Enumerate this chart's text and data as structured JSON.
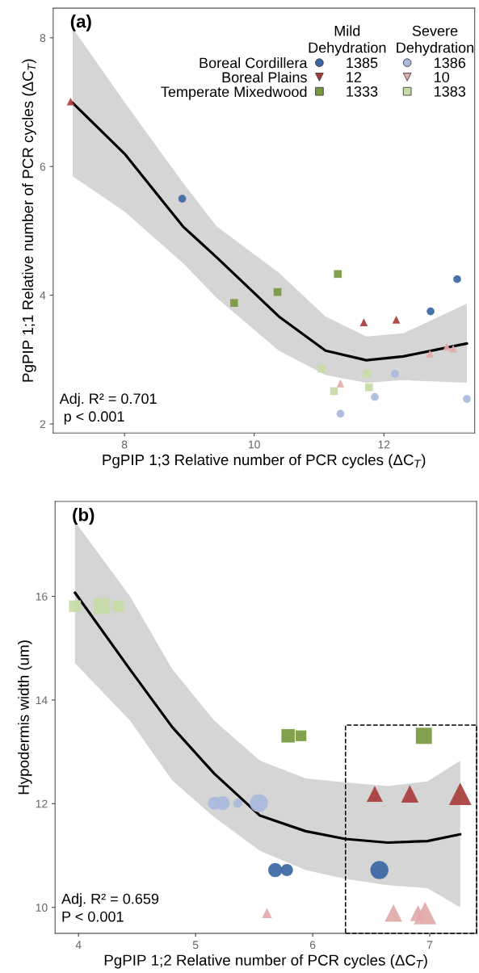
{
  "chart_data": [
    {
      "type": "scatter",
      "xlabel": "PgPIP 1;3 Relative number of PCR cycles (ΔC$_{T}$)",
      "ylabel": "PgPIP 1;1 Relative number of PCR cycles (ΔC$_{T}$)",
      "xlim": [
        6.9,
        13.4
      ],
      "ylim": [
        1.86,
        8.46
      ],
      "xticks": [
        8,
        10,
        12
      ],
      "yticks": [
        2,
        4,
        6,
        8
      ],
      "legend": "top right",
      "grid": false,
      "annotations": [
        "(a)",
        "Mild\nDehydration",
        "Severe\nDehydration",
        "Boreal Cordillera",
        "Boreal Plains",
        "Temperate Mixedwood",
        "Adj. R² = 0.701\n p < 0.001"
      ],
      "series": [
        {
          "name": "1385",
          "type": "scatter",
          "marker": "circle",
          "color": "#3a67a3",
          "x": [
            13.13,
            12.72,
            8.89
          ],
          "values": [
            4.25,
            3.75,
            5.5
          ]
        },
        {
          "name": "12",
          "type": "scatter",
          "marker": "triangle",
          "color": "#a83c3a",
          "x": [
            11.69,
            12.19,
            7.17
          ],
          "values": [
            3.58,
            3.62,
            7.01
          ]
        },
        {
          "name": "1333",
          "type": "scatter",
          "marker": "square",
          "color": "#76993e",
          "x": [
            11.29,
            10.36,
            9.69
          ],
          "values": [
            4.33,
            4.05,
            3.88
          ]
        },
        {
          "name": "1386",
          "type": "scatter",
          "marker": "circle",
          "color": "#a9b9dc",
          "x": [
            12.17,
            11.86,
            11.33,
            13.28
          ],
          "values": [
            2.78,
            2.42,
            2.16,
            2.39
          ]
        },
        {
          "name": "10",
          "type": "scatter",
          "marker": "triangle",
          "color": "#e2a9a9",
          "x": [
            12.71,
            13.07,
            12.97,
            11.33
          ],
          "values": [
            3.09,
            3.17,
            3.2,
            2.63
          ]
        },
        {
          "name": "1383",
          "type": "scatter",
          "marker": "square",
          "color": "#c6dca6",
          "x": [
            11.04,
            11.74,
            11.23,
            11.77
          ],
          "values": [
            2.86,
            2.78,
            2.51,
            2.57
          ]
        },
        {
          "type": "line",
          "color": "#000000",
          "x": [
            7.2,
            8.0,
            8.9,
            9.42,
            10.38,
            11.1,
            11.73,
            12.3,
            13.28
          ],
          "values": [
            6.99,
            6.2,
            5.07,
            4.59,
            3.67,
            3.14,
            2.99,
            3.05,
            3.25
          ],
          "upper": [
            8.15,
            7.0,
            5.75,
            5.07,
            4.35,
            3.67,
            3.36,
            3.41,
            3.87
          ],
          "lower": [
            5.85,
            5.3,
            4.5,
            3.96,
            3.14,
            2.76,
            2.64,
            2.68,
            2.64
          ]
        }
      ]
    },
    {
      "type": "scatter",
      "xlabel": "PgPIP 1;2 Relative number of PCR cycles (ΔC$_{T}$)",
      "ylabel": "Hypodermis width (um)",
      "xlim": [
        3.8,
        7.4
      ],
      "ylim": [
        9.5,
        17.83
      ],
      "xticks": [
        4,
        5,
        6,
        7
      ],
      "yticks": [
        10,
        12,
        14,
        16
      ],
      "grid": false,
      "annotations": [
        "(b)",
        "Adj. R² = 0.659\nP < 0.001"
      ],
      "series": [
        {
          "type": "bubble",
          "marker": "circle",
          "color": "#3a67a3",
          "x": [
            5.68,
            5.78,
            6.57
          ],
          "values": [
            10.72,
            10.72,
            10.72
          ],
          "sizes": [
            0.6,
            0.45,
            1
          ]
        },
        {
          "type": "bubble",
          "marker": "triangle",
          "color": "#a83c3a",
          "x": [
            6.53,
            6.83,
            7.26
          ],
          "values": [
            12.19,
            12.19,
            12.19
          ],
          "sizes": [
            0.5,
            0.6,
            1
          ]
        },
        {
          "type": "bubble",
          "marker": "square",
          "color": "#76993e",
          "x": [
            5.79,
            5.9,
            6.95
          ],
          "values": [
            13.31,
            13.31,
            13.31
          ],
          "sizes": [
            0.7,
            0.45,
            1
          ]
        },
        {
          "type": "bubble",
          "marker": "circle",
          "color": "#a9b9dc",
          "x": [
            5.16,
            5.23,
            5.36,
            5.54
          ],
          "values": [
            12.01,
            12.01,
            12.01,
            12.01
          ],
          "sizes": [
            0.5,
            0.6,
            0.25,
            1
          ]
        },
        {
          "type": "bubble",
          "marker": "triangle",
          "color": "#e2a9a9",
          "x": [
            5.61,
            6.69,
            6.9,
            6.96
          ],
          "values": [
            9.89,
            9.89,
            9.89,
            9.89
          ],
          "sizes": [
            0.2,
            0.6,
            0.5,
            1
          ]
        },
        {
          "type": "bubble",
          "marker": "square",
          "color": "#c6dca6",
          "x": [
            3.97,
            4.2,
            4.34
          ],
          "values": [
            15.81,
            15.81,
            15.81
          ],
          "sizes": [
            0.55,
            1,
            0.55
          ]
        },
        {
          "type": "line",
          "color": "#000000",
          "x": [
            3.97,
            4.44,
            4.8,
            5.16,
            5.55,
            5.94,
            6.28,
            6.64,
            6.98,
            7.26
          ],
          "values": [
            16.07,
            14.59,
            13.48,
            12.58,
            11.77,
            11.47,
            11.32,
            11.25,
            11.28,
            11.41
          ],
          "upper": [
            17.44,
            16.0,
            14.6,
            13.6,
            12.83,
            12.49,
            12.41,
            12.34,
            12.43,
            12.83
          ],
          "lower": [
            14.71,
            13.6,
            12.45,
            11.74,
            11.09,
            10.72,
            10.55,
            10.43,
            10.37,
            10.0
          ]
        }
      ]
    }
  ]
}
